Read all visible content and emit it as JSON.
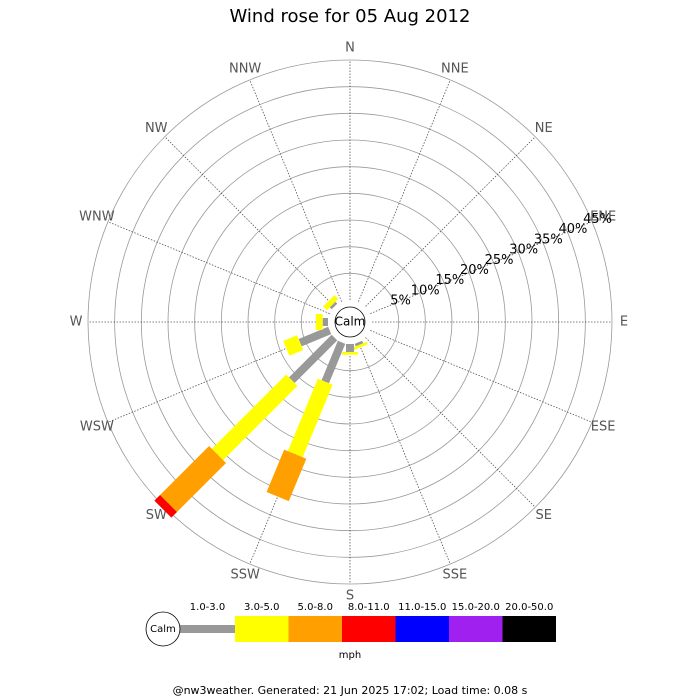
{
  "chart_data": {
    "type": "wind_rose",
    "title": "Wind rose for 05 Aug 2012",
    "categories": [
      "N",
      "NNE",
      "NE",
      "ENE",
      "E",
      "ESE",
      "SE",
      "SSE",
      "S",
      "SSW",
      "SW",
      "WSW",
      "W",
      "WNW",
      "NW",
      "NNW"
    ],
    "rlim": [
      0,
      45
    ],
    "rticks": [
      {
        "value": 5,
        "label": "5%"
      },
      {
        "value": 10,
        "label": "10%"
      },
      {
        "value": 15,
        "label": "15%"
      },
      {
        "value": 20,
        "label": "20%"
      },
      {
        "value": 25,
        "label": "25%"
      },
      {
        "value": 30,
        "label": "30%"
      },
      {
        "value": 35,
        "label": "35%"
      },
      {
        "value": 40,
        "label": "40%"
      },
      {
        "value": 45,
        "label": "45%"
      }
    ],
    "calm_label": "Calm",
    "unit": "mph",
    "series": [
      {
        "name": "1.0-3.0",
        "color": "#999999",
        "values": [
          0,
          0,
          0,
          0,
          0,
          0,
          0,
          0.5,
          1.5,
          8,
          11.3,
          6,
          1,
          0,
          0.5,
          0
        ]
      },
      {
        "name": "3.0-5.0",
        "color": "#ffff00",
        "values": [
          0,
          0,
          0,
          0,
          0,
          0,
          0,
          0.5,
          0.5,
          14.7,
          19.7,
          2.8,
          1.3,
          0,
          1,
          0
        ]
      },
      {
        "name": "5.0-8.0",
        "color": "#ffa000",
        "values": [
          0,
          0,
          0,
          0,
          0,
          0,
          0,
          0,
          0,
          8.6,
          13,
          0,
          0,
          0,
          0,
          0
        ]
      },
      {
        "name": "8.0-11.0",
        "color": "#ff0000",
        "values": [
          0,
          0,
          0,
          0,
          0,
          0,
          0,
          0,
          0,
          0,
          1.5,
          0,
          0,
          0,
          0,
          0
        ]
      },
      {
        "name": "11.0-15.0",
        "color": "#0000ff",
        "values": [
          0,
          0,
          0,
          0,
          0,
          0,
          0,
          0,
          0,
          0,
          0,
          0,
          0,
          0,
          0,
          0
        ]
      },
      {
        "name": "15.0-20.0",
        "color": "#a020f0",
        "values": [
          0,
          0,
          0,
          0,
          0,
          0,
          0,
          0,
          0,
          0,
          0,
          0,
          0,
          0,
          0,
          0
        ]
      },
      {
        "name": "20.0-50.0",
        "color": "#000000",
        "values": [
          0,
          0,
          0,
          0,
          0,
          0,
          0,
          0,
          0,
          0,
          0,
          0,
          0,
          0,
          0,
          0
        ]
      }
    ],
    "footer": "@nw3weather. Generated: 21 Jun 2025 17:02; Load time: 0.08 s"
  }
}
